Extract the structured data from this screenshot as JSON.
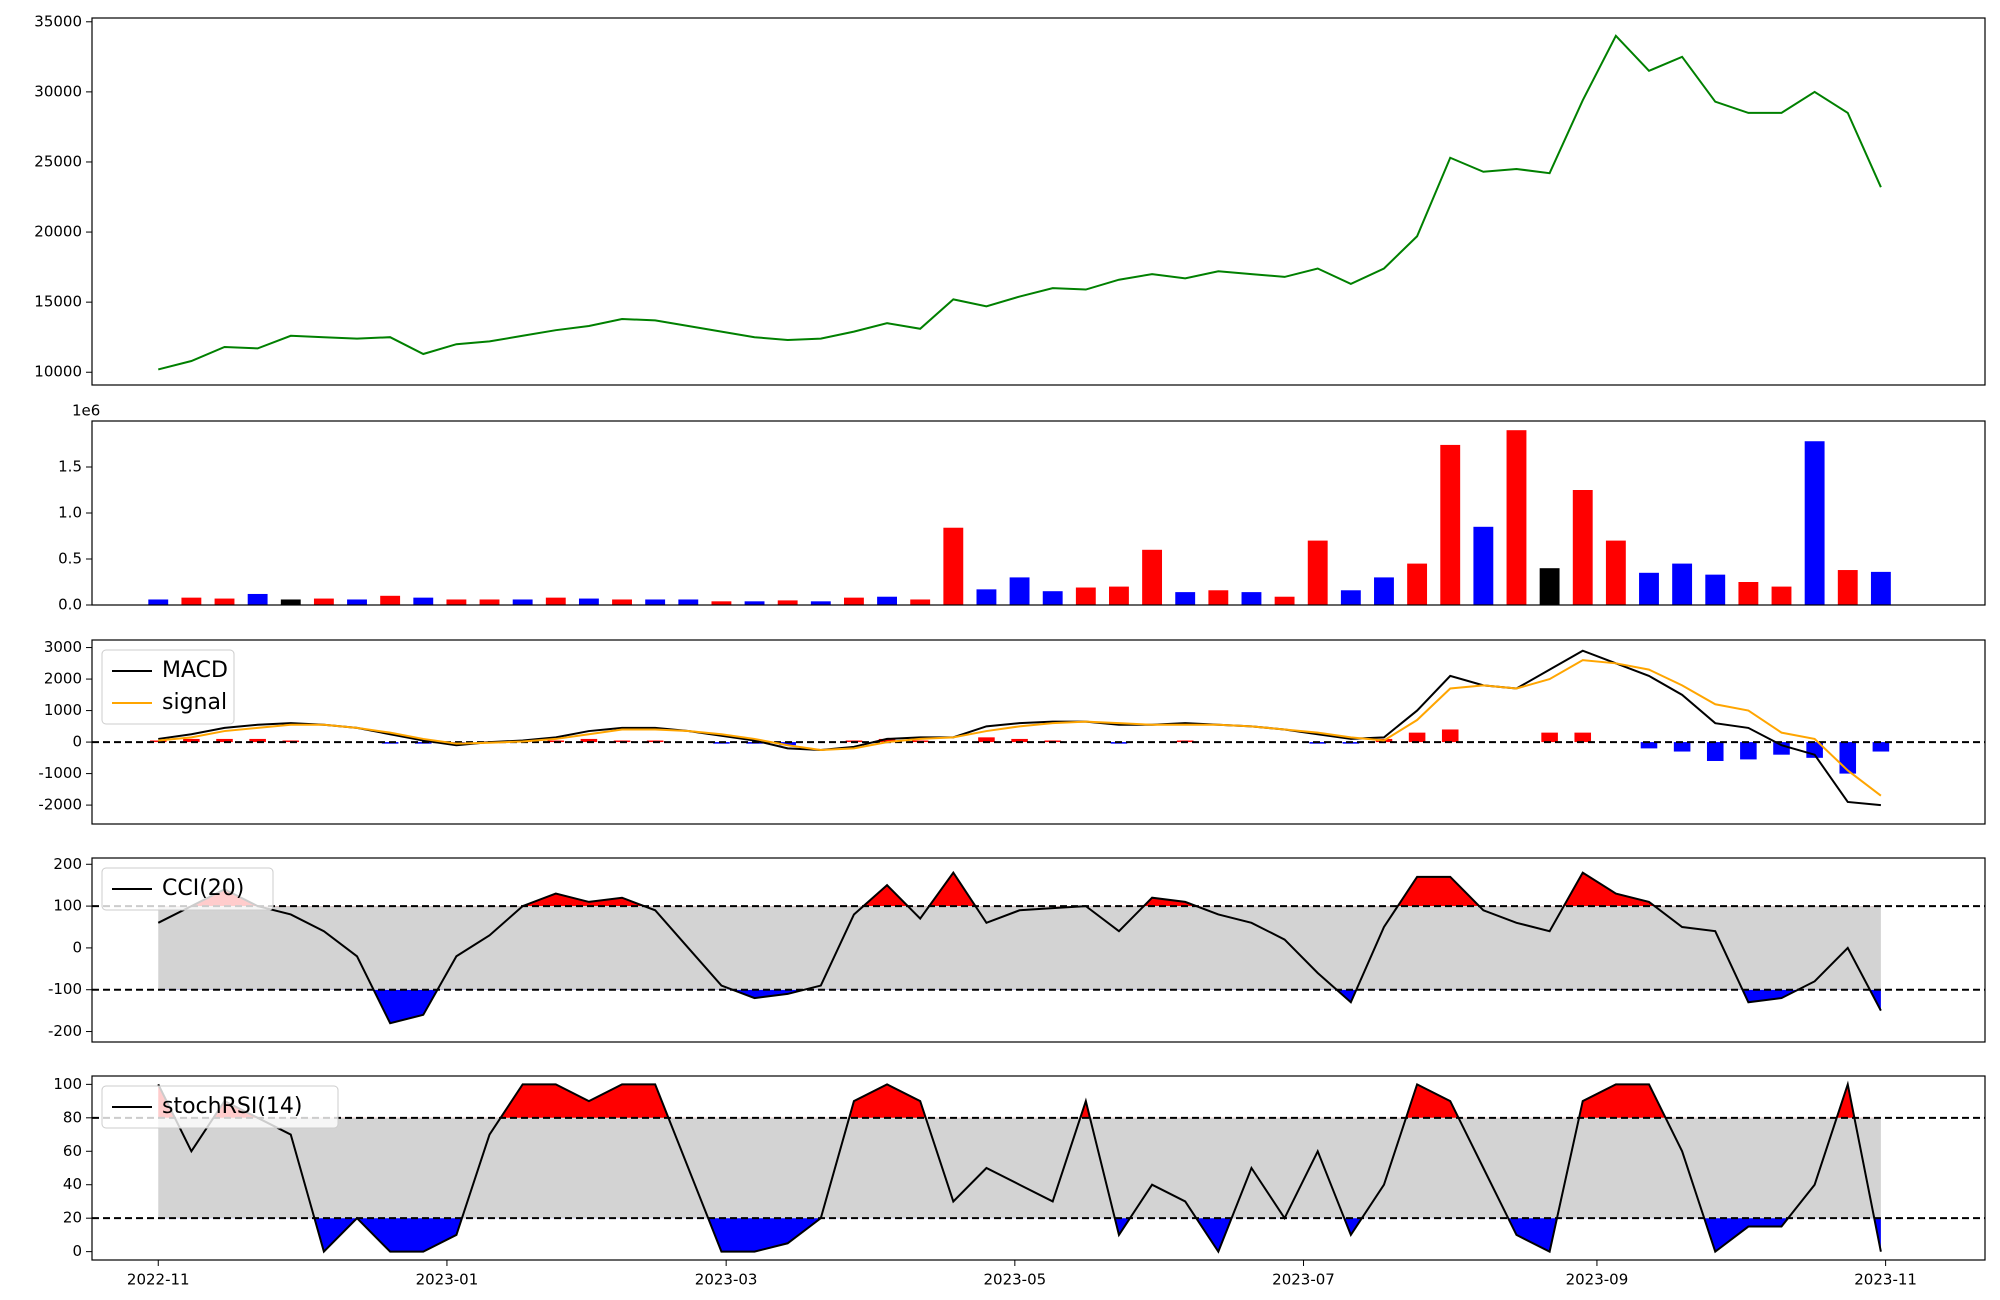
{
  "chart_data": [
    {
      "type": "line",
      "x": [
        19297,
        19304,
        19311,
        19318,
        19325,
        19332,
        19339,
        19346,
        19353,
        19360,
        19367,
        19374,
        19381,
        19388,
        19395,
        19402,
        19409,
        19416,
        19423,
        19430,
        19437,
        19444,
        19451,
        19458,
        19465,
        19472,
        19479,
        19486,
        19493,
        19500,
        19507,
        19514,
        19521,
        19528,
        19535,
        19542,
        19549,
        19556,
        19563,
        19570,
        19577,
        19584,
        19591,
        19598,
        19605,
        19612,
        19619,
        19626,
        19633,
        19640,
        19647,
        19654,
        19661
      ],
      "series": [
        {
          "color": "green",
          "values": [
            10200,
            10800,
            11800,
            11700,
            12600,
            12500,
            12400,
            12500,
            11300,
            12000,
            12200,
            12600,
            13000,
            13300,
            13800,
            13700,
            13300,
            12900,
            12500,
            12300,
            12400,
            12900,
            13500,
            13100,
            15200,
            14700,
            15400,
            16000,
            15900,
            16600,
            17000,
            16700,
            17200,
            17000,
            16800,
            17400,
            16300,
            17400,
            19700,
            25300,
            24300,
            24500,
            24200,
            29400,
            34000,
            31500,
            32500,
            29300,
            28500,
            28500,
            30000,
            28500,
            23200
          ]
        }
      ],
      "xlim": [
        19283,
        19683
      ],
      "ylim": [
        9090,
        35270
      ],
      "yticks": [
        10000,
        15000,
        20000,
        25000,
        30000,
        35000
      ]
    },
    {
      "type": "bar",
      "x": [
        19297,
        19304,
        19311,
        19318,
        19325,
        19332,
        19339,
        19346,
        19353,
        19360,
        19367,
        19374,
        19381,
        19388,
        19395,
        19402,
        19409,
        19416,
        19423,
        19430,
        19437,
        19444,
        19451,
        19458,
        19465,
        19472,
        19479,
        19486,
        19493,
        19500,
        19507,
        19514,
        19521,
        19528,
        19535,
        19542,
        19549,
        19556,
        19563,
        19570,
        19577,
        19584,
        19591,
        19598,
        19605,
        19612,
        19619,
        19626,
        19633,
        19640,
        19647,
        19654,
        19661
      ],
      "values": [
        60000,
        80000,
        70000,
        120000,
        60000,
        70000,
        60000,
        100000,
        80000,
        60000,
        60000,
        60000,
        80000,
        70000,
        60000,
        60000,
        60000,
        40000,
        40000,
        50000,
        40000,
        80000,
        90000,
        60000,
        840000,
        170000,
        300000,
        150000,
        190000,
        200000,
        600000,
        140000,
        160000,
        140000,
        90000,
        700000,
        160000,
        300000,
        450000,
        1740000,
        850000,
        1900000,
        400000,
        1250000,
        700000,
        350000,
        450000,
        330000,
        250000,
        200000,
        1780000,
        380000,
        360000
      ],
      "colors": [
        "blue",
        "red",
        "red",
        "blue",
        "black",
        "red",
        "blue",
        "red",
        "blue",
        "red",
        "red",
        "blue",
        "red",
        "blue",
        "red",
        "blue",
        "blue",
        "red",
        "blue",
        "red",
        "blue",
        "red",
        "blue",
        "red",
        "red",
        "blue",
        "blue",
        "blue",
        "red",
        "red",
        "red",
        "blue",
        "red",
        "blue",
        "red",
        "red",
        "blue",
        "blue",
        "red",
        "red",
        "blue",
        "red",
        "black",
        "red",
        "red",
        "blue",
        "blue",
        "blue",
        "red",
        "red",
        "blue",
        "red",
        "blue"
      ],
      "y_offset_label": "1e6",
      "xlim": [
        19283,
        19683
      ],
      "ylim": [
        0,
        2000000
      ],
      "yticks": [
        {
          "value": 0,
          "label": "0.0"
        },
        {
          "value": 500000,
          "label": "0.5"
        },
        {
          "value": 1000000,
          "label": "1.0"
        },
        {
          "value": 1500000,
          "label": "1.5"
        }
      ]
    },
    {
      "type": "macd",
      "x": [
        19297,
        19304,
        19311,
        19318,
        19325,
        19332,
        19339,
        19346,
        19353,
        19360,
        19367,
        19374,
        19381,
        19388,
        19395,
        19402,
        19409,
        19416,
        19423,
        19430,
        19437,
        19444,
        19451,
        19458,
        19465,
        19472,
        19479,
        19486,
        19493,
        19500,
        19507,
        19514,
        19521,
        19528,
        19535,
        19542,
        19549,
        19556,
        19563,
        19570,
        19577,
        19584,
        19591,
        19598,
        19605,
        19612,
        19619,
        19626,
        19633,
        19640,
        19647,
        19654,
        19661
      ],
      "series": [
        {
          "name": "MACD",
          "color": "black",
          "values": [
            100,
            250,
            450,
            550,
            600,
            550,
            450,
            250,
            50,
            -100,
            0,
            50,
            150,
            350,
            450,
            450,
            350,
            200,
            50,
            -200,
            -250,
            -150,
            100,
            150,
            150,
            500,
            600,
            650,
            650,
            550,
            550,
            600,
            550,
            500,
            400,
            250,
            100,
            150,
            1000,
            2100,
            1800,
            1700,
            2300,
            2900,
            2500,
            2100,
            1500,
            600,
            450,
            -100,
            -400,
            -1900,
            -2000
          ]
        },
        {
          "name": "signal",
          "color": "orange",
          "values": [
            50,
            150,
            350,
            450,
            550,
            550,
            450,
            300,
            100,
            -50,
            -20,
            20,
            100,
            250,
            400,
            400,
            350,
            250,
            100,
            -100,
            -250,
            -200,
            0,
            100,
            150,
            350,
            500,
            600,
            650,
            600,
            550,
            550,
            550,
            500,
            400,
            300,
            150,
            50,
            700,
            1700,
            1800,
            1700,
            2000,
            2600,
            2500,
            2300,
            1800,
            1200,
            1000,
            300,
            100,
            -900,
            -1700
          ]
        }
      ],
      "histogram": {
        "colors": [
          "red",
          "blue"
        ],
        "values": [
          50,
          100,
          100,
          100,
          50,
          0,
          0,
          -50,
          -50,
          -50,
          20,
          30,
          50,
          100,
          50,
          50,
          0,
          -50,
          -50,
          -100,
          0,
          50,
          100,
          50,
          0,
          150,
          100,
          50,
          0,
          -50,
          0,
          50,
          0,
          0,
          0,
          -50,
          -50,
          100,
          300,
          400,
          0,
          0,
          300,
          300,
          0,
          -200,
          -300,
          -600,
          -550,
          -400,
          -500,
          -1000,
          -300
        ]
      },
      "hlines": [
        0
      ],
      "legend": "upper left",
      "xlim": [
        19283,
        19683
      ],
      "ylim": [
        -2600,
        3240
      ],
      "yticks": [
        -2000,
        -1000,
        0,
        1000,
        2000,
        3000
      ]
    },
    {
      "type": "band",
      "x": [
        19297,
        19304,
        19311,
        19318,
        19325,
        19332,
        19339,
        19346,
        19353,
        19360,
        19367,
        19374,
        19381,
        19388,
        19395,
        19402,
        19409,
        19416,
        19423,
        19430,
        19437,
        19444,
        19451,
        19458,
        19465,
        19472,
        19479,
        19486,
        19493,
        19500,
        19507,
        19514,
        19521,
        19528,
        19535,
        19542,
        19549,
        19556,
        19563,
        19570,
        19577,
        19584,
        19591,
        19598,
        19605,
        19612,
        19619,
        19626,
        19633,
        19640,
        19647,
        19654,
        19661
      ],
      "series": [
        {
          "name": "CCI(20)",
          "color": "black",
          "values": [
            60,
            100,
            140,
            100,
            80,
            40,
            -20,
            -180,
            -160,
            -20,
            30,
            100,
            130,
            110,
            120,
            90,
            0,
            -90,
            -120,
            -110,
            -90,
            80,
            150,
            70,
            180,
            60,
            90,
            95,
            100,
            40,
            120,
            110,
            80,
            60,
            20,
            -60,
            -130,
            50,
            170,
            170,
            90,
            60,
            40,
            180,
            130,
            110,
            50,
            40,
            -130,
            -120,
            -80,
            0,
            -150
          ]
        }
      ],
      "hlines": [
        100,
        -100
      ],
      "fill_colors": [
        "red",
        "lightgray",
        "blue"
      ],
      "legend": "upper left",
      "xlim": [
        19283,
        19683
      ],
      "ylim": [
        -225,
        215
      ],
      "yticks": [
        -200,
        -100,
        0,
        100,
        200
      ]
    },
    {
      "type": "band",
      "x": [
        19297,
        19304,
        19311,
        19318,
        19325,
        19332,
        19339,
        19346,
        19353,
        19360,
        19367,
        19374,
        19381,
        19388,
        19395,
        19402,
        19409,
        19416,
        19423,
        19430,
        19437,
        19444,
        19451,
        19458,
        19465,
        19472,
        19479,
        19486,
        19493,
        19500,
        19507,
        19514,
        19521,
        19528,
        19535,
        19542,
        19549,
        19556,
        19563,
        19570,
        19577,
        19584,
        19591,
        19598,
        19605,
        19612,
        19619,
        19626,
        19633,
        19640,
        19647,
        19654,
        19661
      ],
      "series": [
        {
          "name": "stochRSI(14)",
          "color": "black",
          "values": [
            100,
            60,
            90,
            80,
            70,
            0,
            20,
            0,
            0,
            10,
            70,
            100,
            100,
            90,
            100,
            100,
            50,
            0,
            0,
            5,
            20,
            90,
            100,
            90,
            30,
            50,
            40,
            30,
            90,
            10,
            40,
            30,
            0,
            50,
            20,
            60,
            10,
            40,
            100,
            90,
            50,
            10,
            0,
            90,
            100,
            100,
            60,
            0,
            15,
            15,
            40,
            100,
            0
          ]
        }
      ],
      "hlines": [
        80,
        20
      ],
      "fill_colors": [
        "red",
        "lightgray",
        "blue"
      ],
      "legend": "upper left",
      "xlim": [
        19283,
        19683
      ],
      "ylim": [
        -5,
        105
      ],
      "yticks": [
        0,
        20,
        40,
        60,
        80,
        100
      ],
      "xticks": [
        {
          "value": 19297,
          "label": "2022-11"
        },
        {
          "value": 19358,
          "label": "2023-01"
        },
        {
          "value": 19417,
          "label": "2023-03"
        },
        {
          "value": 19478,
          "label": "2023-05"
        },
        {
          "value": 19539,
          "label": "2023-07"
        },
        {
          "value": 19601,
          "label": "2023-09"
        },
        {
          "value": 19662,
          "label": "2023-11"
        }
      ]
    }
  ]
}
